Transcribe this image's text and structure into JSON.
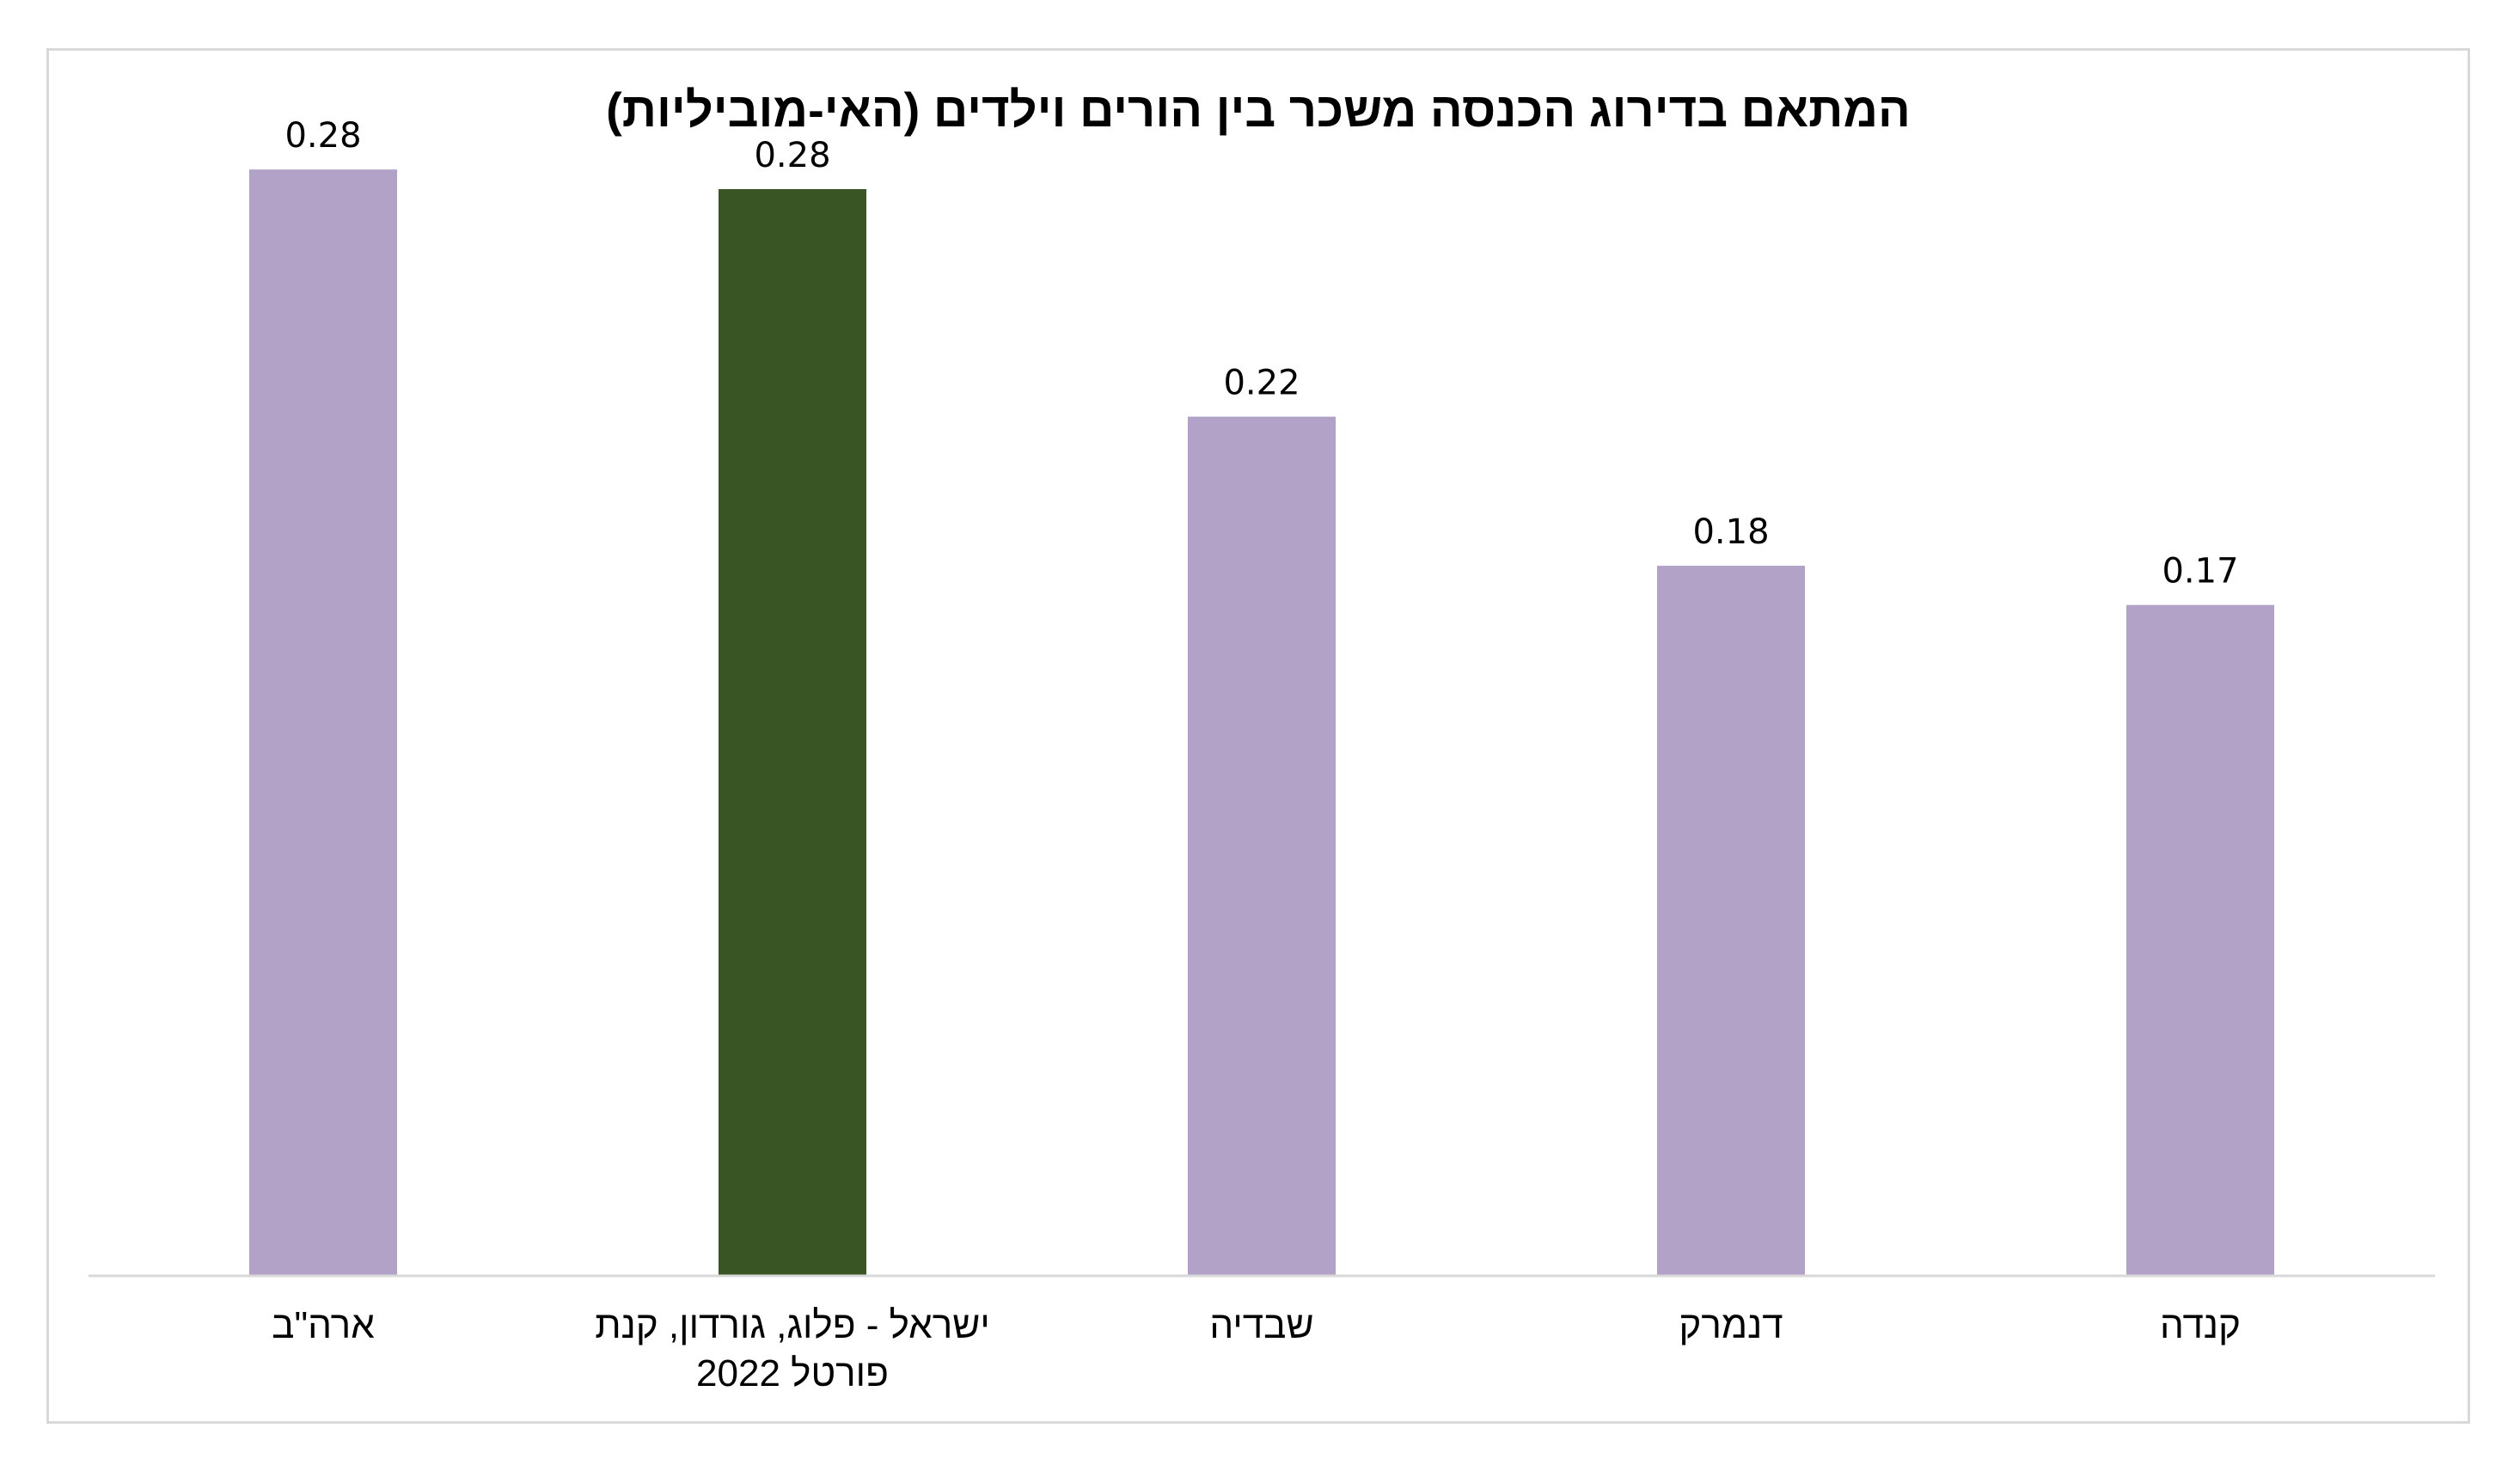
{
  "chart_data": {
    "type": "bar",
    "title": "המתאם בדירוג הכנסה משכר בין הורים וילדים (האי-מוביליות)",
    "xlabel": "",
    "ylabel": "",
    "direction": "rtl",
    "ylim": [
      0,
      0.3
    ],
    "grid": false,
    "legend": "none",
    "categories": [
      [
        "קנדה"
      ],
      [
        "דנמרק"
      ],
      [
        "שבדיה"
      ],
      [
        "ישראל - פלוג, גורדון, קנת",
        "פורטל 2022"
      ],
      [
        "ארה\"ב"
      ]
    ],
    "values": [
      0.17,
      0.18,
      0.22,
      0.28,
      0.28
    ],
    "value_labels": [
      "0.17",
      "0.18",
      "0.22",
      "0.28",
      "0.28"
    ],
    "bar_values_precise": [
      0.171,
      0.181,
      0.219,
      0.277,
      0.282
    ],
    "colors": [
      "#b3a2c7",
      "#b3a2c7",
      "#b3a2c7",
      "#3a5524",
      "#b3a2c7"
    ],
    "axis_line_color": "#d9d9d9"
  }
}
